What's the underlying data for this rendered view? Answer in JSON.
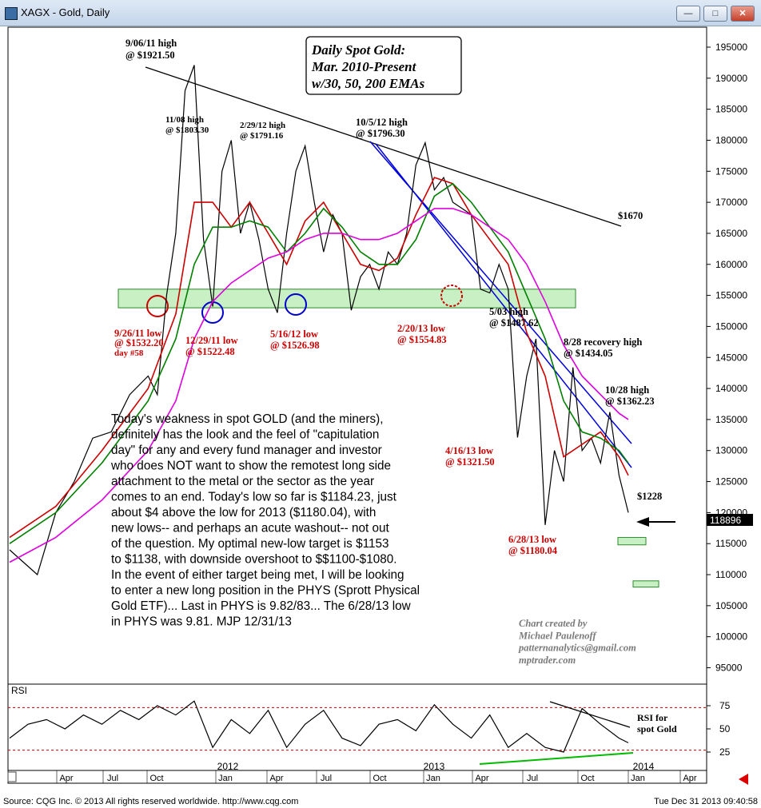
{
  "window": {
    "title": "XAGX - Gold, Daily",
    "buttons": [
      "minimize",
      "restore",
      "close"
    ]
  },
  "price_label": "118896",
  "chart_data": [
    {
      "type": "line",
      "title_box": [
        "Daily Spot Gold:",
        "Mar. 2010-Present",
        "w/30, 50, 200 EMAs"
      ],
      "ylim": [
        900,
        1990
      ],
      "y_ticks": [
        "195000",
        "190000",
        "185000",
        "180000",
        "175000",
        "170000",
        "165000",
        "160000",
        "155000",
        "150000",
        "145000",
        "140000",
        "135000",
        "130000",
        "125000",
        "120000",
        "115000",
        "110000",
        "105000",
        "100000",
        "95000"
      ],
      "y_tick_values": [
        1950,
        1900,
        1850,
        1800,
        1750,
        1700,
        1650,
        1600,
        1550,
        1500,
        1450,
        1400,
        1350,
        1300,
        1250,
        1200,
        1150,
        1100,
        1050,
        1000,
        950
      ],
      "x_month_ticks": [
        "Apr",
        "Jul",
        "Oct",
        "Jan",
        "Apr",
        "Jul",
        "Oct",
        "Jan",
        "Apr",
        "Jul",
        "Oct",
        "Jan",
        "Apr"
      ],
      "x_year_labels": [
        "2012",
        "2013",
        "2014"
      ],
      "series": [
        {
          "name": "price",
          "color": "#000000",
          "x": [
            0,
            3,
            5,
            7,
            9,
            11,
            13,
            15,
            16,
            17,
            18,
            19,
            20,
            21,
            22,
            23,
            24,
            25,
            26,
            27,
            28,
            29,
            30,
            31,
            32,
            33,
            34,
            35,
            36,
            37,
            38,
            39,
            40,
            41,
            42,
            43,
            44,
            45,
            46,
            47,
            48,
            49,
            50,
            51,
            52,
            53,
            54,
            55,
            56,
            57,
            58,
            59,
            60,
            61,
            62,
            63,
            64,
            65,
            66,
            67
          ],
          "values": [
            1140,
            1100,
            1200,
            1250,
            1320,
            1330,
            1390,
            1420,
            1390,
            1550,
            1650,
            1880,
            1921,
            1640,
            1532,
            1750,
            1800,
            1650,
            1700,
            1640,
            1560,
            1522,
            1650,
            1750,
            1791,
            1700,
            1620,
            1680,
            1650,
            1526,
            1580,
            1600,
            1560,
            1620,
            1600,
            1650,
            1760,
            1796,
            1720,
            1740,
            1700,
            1690,
            1680,
            1560,
            1554,
            1600,
            1560,
            1321,
            1420,
            1480,
            1180,
            1300,
            1250,
            1434,
            1300,
            1320,
            1280,
            1362,
            1260,
            1200
          ]
        },
        {
          "name": "EMA 30",
          "color": "#cc0000",
          "x": [
            0,
            5,
            10,
            15,
            18,
            20,
            22,
            24,
            26,
            28,
            30,
            32,
            34,
            36,
            38,
            40,
            42,
            44,
            46,
            48,
            50,
            52,
            54,
            56,
            58,
            60,
            62,
            64,
            66,
            67
          ],
          "values": [
            1160,
            1210,
            1300,
            1400,
            1520,
            1700,
            1700,
            1660,
            1700,
            1650,
            1600,
            1670,
            1700,
            1650,
            1600,
            1590,
            1610,
            1680,
            1740,
            1730,
            1680,
            1640,
            1600,
            1490,
            1420,
            1290,
            1310,
            1330,
            1290,
            1260
          ]
        },
        {
          "name": "EMA 50",
          "color": "#008000",
          "x": [
            0,
            5,
            10,
            15,
            18,
            20,
            22,
            24,
            26,
            28,
            30,
            32,
            34,
            36,
            38,
            40,
            42,
            44,
            46,
            48,
            50,
            52,
            54,
            56,
            58,
            60,
            62,
            64,
            66,
            67
          ],
          "values": [
            1150,
            1200,
            1280,
            1380,
            1480,
            1600,
            1660,
            1660,
            1670,
            1660,
            1620,
            1650,
            1690,
            1660,
            1620,
            1600,
            1600,
            1640,
            1710,
            1730,
            1700,
            1660,
            1620,
            1550,
            1480,
            1380,
            1330,
            1320,
            1300,
            1280
          ]
        },
        {
          "name": "EMA 200",
          "color": "#dd00dd",
          "x": [
            0,
            5,
            10,
            15,
            18,
            20,
            22,
            24,
            26,
            28,
            30,
            32,
            34,
            36,
            38,
            40,
            42,
            44,
            46,
            48,
            50,
            52,
            54,
            56,
            58,
            60,
            62,
            64,
            66,
            67
          ],
          "values": [
            1120,
            1160,
            1220,
            1300,
            1380,
            1480,
            1540,
            1570,
            1590,
            1610,
            1620,
            1640,
            1650,
            1650,
            1640,
            1640,
            1650,
            1670,
            1690,
            1690,
            1680,
            1660,
            1640,
            1600,
            1540,
            1470,
            1420,
            1390,
            1360,
            1350
          ]
        }
      ],
      "annotations": [
        {
          "text": "9/06/11 high",
          "color": "#000000"
        },
        {
          "text": "@ $1921.50",
          "color": "#000000"
        },
        {
          "text": "11/08 high",
          "color": "#000000"
        },
        {
          "text": "@ $1803.30",
          "color": "#000000"
        },
        {
          "text": "2/29/12 high",
          "color": "#000000"
        },
        {
          "text": "@ $1791.16",
          "color": "#000000"
        },
        {
          "text": "10/5/12 high",
          "color": "#000000"
        },
        {
          "text": "@ $1796.30",
          "color": "#000000"
        },
        {
          "text": "$1670",
          "color": "#000000"
        },
        {
          "text": "9/26/11 low",
          "color": "#cc0000"
        },
        {
          "text": "@ $1532.20",
          "color": "#cc0000"
        },
        {
          "text": "day #58",
          "color": "#cc0000"
        },
        {
          "text": "12/29/11 low",
          "color": "#cc0000"
        },
        {
          "text": "@ $1522.48",
          "color": "#cc0000"
        },
        {
          "text": "5/16/12 low",
          "color": "#cc0000"
        },
        {
          "text": "@ $1526.98",
          "color": "#cc0000"
        },
        {
          "text": "2/20/13 low",
          "color": "#cc0000"
        },
        {
          "text": "@ $1554.83",
          "color": "#cc0000"
        },
        {
          "text": "5/03 high",
          "color": "#000000"
        },
        {
          "text": "@ $1487.62",
          "color": "#000000"
        },
        {
          "text": "8/28 recovery high",
          "color": "#000000"
        },
        {
          "text": "@ $1434.05",
          "color": "#000000"
        },
        {
          "text": "10/28 high",
          "color": "#000000"
        },
        {
          "text": "@ $1362.23",
          "color": "#000000"
        },
        {
          "text": "4/16/13 low",
          "color": "#cc0000"
        },
        {
          "text": "@ $1321.50",
          "color": "#cc0000"
        },
        {
          "text": "6/28/13 low",
          "color": "#cc0000"
        },
        {
          "text": "@ $1180.04",
          "color": "#cc0000"
        },
        {
          "text": "$1228",
          "color": "#000000"
        }
      ],
      "commentary": [
        "Today's weakness in spot GOLD (and the miners),",
        "definitely has the look and the feel of \"capitulation",
        "day\" for any and every fund manager and investor",
        "who does NOT want to show the remotest long side",
        "attachment to the metal or the sector as the year",
        "comes to an end. Today's low so far is $1184.23, just",
        "about $4 above the low for 2013 ($1180.04), with",
        "new lows-- and perhaps an acute washout-- not out",
        "of the question.  My optimal new-low target is $1153",
        "to $1138, with downside overshoot to $$1100-$1080.",
        "In the event of either target being met, I will be looking",
        "to enter a new long position in the PHYS (Sprott Physical",
        "Gold ETF)... Last in PHYS is 9.82/83... The 6/28/13 low",
        "in PHYS was 9.81.  MJP  12/31/13"
      ],
      "credit": [
        "Chart created by",
        "Michael Paulenoff",
        "patternanalytics@gmail.com",
        "mptrader.com"
      ],
      "support_zone": [
        1530,
        1560
      ],
      "target_zones": [
        [
          1148,
          1160
        ],
        [
          1080,
          1090
        ]
      ]
    },
    {
      "type": "line",
      "title": "RSI",
      "ylim": [
        15,
        90
      ],
      "y_ticks": [
        "75",
        "50",
        "25"
      ],
      "y_tick_values": [
        75,
        50,
        25
      ],
      "overbought": 73,
      "oversold": 27,
      "series": [
        {
          "name": "RSI",
          "color": "#000000",
          "x": [
            0,
            2,
            4,
            6,
            8,
            10,
            12,
            14,
            16,
            18,
            20,
            22,
            24,
            26,
            28,
            30,
            32,
            34,
            36,
            38,
            40,
            42,
            44,
            46,
            48,
            50,
            52,
            54,
            56,
            58,
            60,
            62,
            64,
            66,
            67
          ],
          "values": [
            40,
            55,
            60,
            50,
            65,
            55,
            70,
            60,
            75,
            65,
            80,
            30,
            60,
            45,
            70,
            30,
            55,
            70,
            40,
            32,
            55,
            60,
            48,
            76,
            55,
            40,
            65,
            30,
            45,
            30,
            25,
            72,
            55,
            40,
            35
          ]
        }
      ],
      "annotation": [
        "RSI for",
        "spot Gold"
      ]
    }
  ],
  "footer": {
    "source": "Source: CQG Inc. © 2013 All rights reserved worldwide. http://www.cqg.com",
    "timestamp": "Tue Dec 31 2013 09:40:58"
  }
}
